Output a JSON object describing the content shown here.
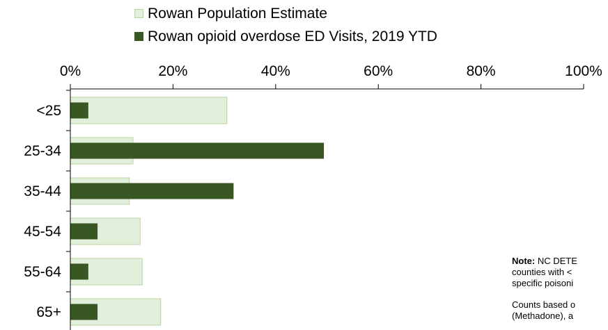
{
  "chart_data": {
    "type": "bar",
    "orientation": "horizontal",
    "categories": [
      "<25",
      "25-34",
      "35-44",
      "45-54",
      "55-64",
      "65+"
    ],
    "series": [
      {
        "name": "Rowan Population Estimate",
        "color": "#e2efda",
        "border": "#b5d5a0",
        "values": [
          30.5,
          12.2,
          11.5,
          13.6,
          14.0,
          17.6
        ]
      },
      {
        "name": "Rowan opioid overdose ED Visits, 2019 YTD",
        "color": "#385723",
        "values": [
          3.5,
          49.4,
          31.8,
          5.3,
          3.5,
          5.3
        ]
      }
    ],
    "xlim": [
      0,
      100
    ],
    "xticks": [
      "0%",
      "20%",
      "40%",
      "60%",
      "80%",
      "100%"
    ],
    "axis_position": "top",
    "grid": false,
    "legend_position": "top"
  },
  "note": {
    "label": "Note:",
    "line1": " NC DETE",
    "line2": "counties with <",
    "line3": "specific poisoni",
    "line4": "Counts based o",
    "line5": "(Methadone), a"
  }
}
